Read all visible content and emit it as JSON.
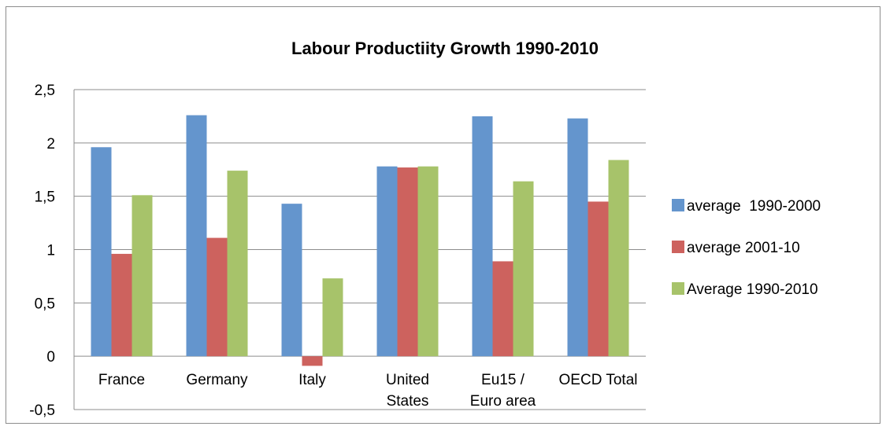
{
  "chart_data": {
    "type": "bar",
    "title": "Labour Productiity Growth 1990-2010",
    "categories": [
      [
        "France"
      ],
      [
        "Germany"
      ],
      [
        "Italy"
      ],
      [
        "United",
        "States"
      ],
      [
        "Eu15 /",
        "Euro area"
      ],
      [
        "OECD Total"
      ]
    ],
    "series": [
      {
        "name": "average  1990-2000",
        "color": "#6495cd",
        "values": [
          1.96,
          2.26,
          1.43,
          1.78,
          2.25,
          2.23
        ]
      },
      {
        "name": "average 2001-10",
        "color": "#cd625e",
        "values": [
          0.96,
          1.11,
          -0.09,
          1.77,
          0.89,
          1.45
        ]
      },
      {
        "name": "Average 1990-2010",
        "color": "#a7c36a",
        "values": [
          1.51,
          1.74,
          0.73,
          1.78,
          1.64,
          1.84
        ]
      }
    ],
    "yticks": [
      "2,5",
      "2",
      "1,5",
      "1",
      "0,5",
      "0",
      "-0,5"
    ],
    "ylim": [
      -0.5,
      2.5
    ],
    "grid": true,
    "legend_position": "right"
  }
}
